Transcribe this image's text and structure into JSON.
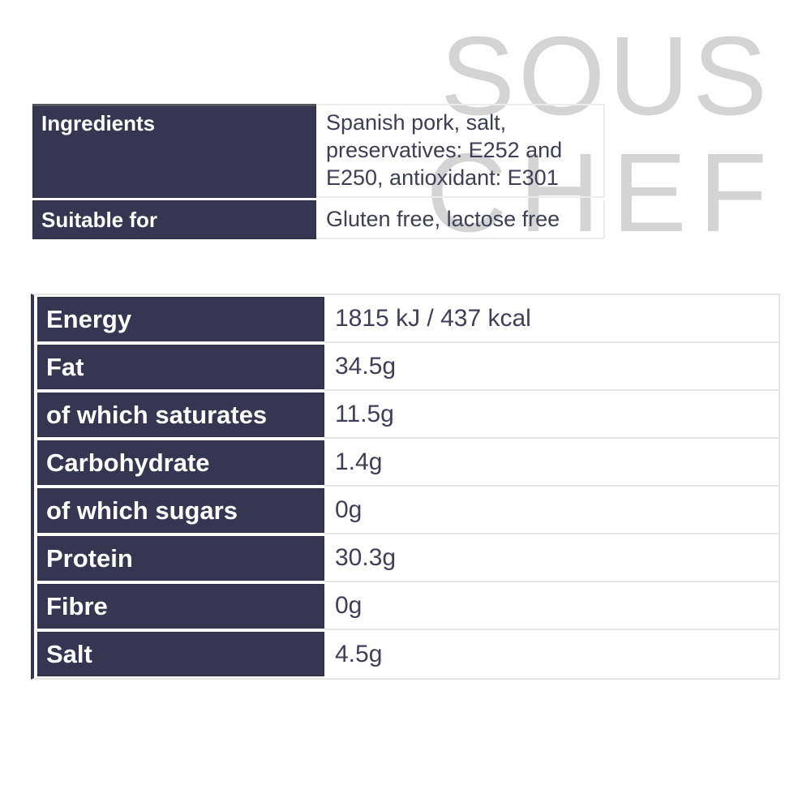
{
  "watermark": {
    "line1": "SOUS",
    "line2": "CHEF",
    "color": "#d4d4d4"
  },
  "info_table": {
    "rows": [
      {
        "label": "Ingredients",
        "value": "Spanish pork, salt, preservatives: E252 and E250, antioxidant: E301"
      },
      {
        "label": "Suitable for",
        "value": "Gluten free, lactose free"
      }
    ]
  },
  "nutrition_table": {
    "rows": [
      {
        "label": "Energy",
        "value": "1815 kJ / 437 kcal"
      },
      {
        "label": "Fat",
        "value": "34.5g"
      },
      {
        "label": "of which saturates",
        "value": "11.5g"
      },
      {
        "label": "Carbohydrate",
        "value": "1.4g"
      },
      {
        "label": "of which sugars",
        "value": "0g"
      },
      {
        "label": "Protein",
        "value": "30.3g"
      },
      {
        "label": "Fibre",
        "value": "0g"
      },
      {
        "label": "Salt",
        "value": "4.5g"
      }
    ]
  },
  "colors": {
    "navy": "#363653",
    "value_text": "#3f3f5a",
    "watermark_gray": "#d4d4d4",
    "border_light": "#e6e6e6"
  }
}
